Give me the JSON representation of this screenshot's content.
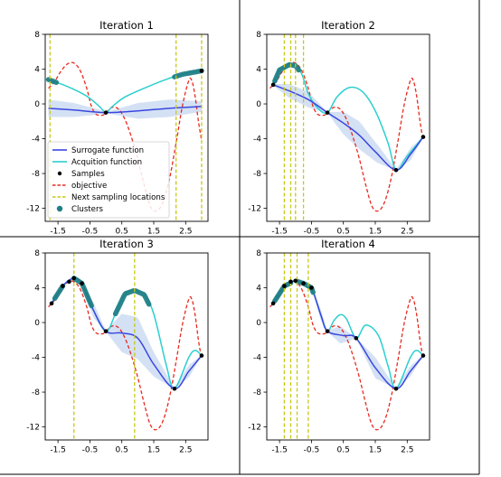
{
  "chart_data": {
    "type": "line",
    "layout": "2x2 grid",
    "xlim": [
      -1.9,
      3.2
    ],
    "ylim": [
      -13.5,
      8
    ],
    "xticks": [
      "-1.5",
      "-0.5",
      "0.5",
      "1.5",
      "2.5"
    ],
    "yticks": [
      "8",
      "4",
      "0",
      "-4",
      "-8",
      "-12"
    ],
    "xtick_values": [
      -1.5,
      -0.5,
      0.5,
      1.5,
      2.5
    ],
    "ytick_values": [
      8,
      4,
      0,
      -4,
      -8,
      -12
    ],
    "grid": false,
    "legend_position": "bottom-left",
    "legend": {
      "surrogate": "Surrogate function",
      "acquisition": "Acquition function",
      "samples": "Samples",
      "objective": "objective",
      "next": "Next sampling locations",
      "clusters": "Clusters"
    },
    "colors": {
      "surrogate": "#3a47e0",
      "acquisition": "#2ccfcf",
      "samples": "#000000",
      "objective": "#e8291f",
      "next": "#c8c817",
      "clusters": "#1f7f86",
      "band": "#c5d7f0"
    },
    "objective": {
      "x": [
        -1.8,
        -1.6,
        -1.4,
        -1.2,
        -1.0,
        -0.8,
        -0.6,
        -0.45,
        -0.3,
        -0.1,
        0.0,
        0.2,
        0.4,
        0.6,
        0.8,
        1.0,
        1.2,
        1.4,
        1.6,
        1.8,
        2.0,
        2.2,
        2.4,
        2.6,
        2.7,
        2.8,
        2.9,
        3.0
      ],
      "y": [
        1.8,
        2.6,
        3.8,
        4.6,
        4.7,
        3.8,
        1.8,
        -0.3,
        -1.2,
        -1.3,
        -1.0,
        -0.4,
        -0.6,
        -1.8,
        -3.8,
        -6.3,
        -9.3,
        -11.8,
        -12.3,
        -11.2,
        -8.5,
        -4.5,
        -0.2,
        2.7,
        2.6,
        0.8,
        -2.0,
        -4.2
      ]
    },
    "panels": [
      {
        "title": "Iteration 1",
        "samples": {
          "x": [
            0.0,
            3.0
          ],
          "y": [
            -1.0,
            3.8
          ]
        },
        "surrogate": {
          "x": [
            -1.8,
            -1.0,
            0.0,
            1.0,
            2.0,
            3.0
          ],
          "y": [
            -0.5,
            -0.7,
            -1.0,
            -0.8,
            -0.5,
            -0.3
          ]
        },
        "surrogate_std": {
          "x": [
            -1.8,
            -1.0,
            -0.3,
            0.0,
            0.4,
            1.0,
            2.0,
            3.0
          ],
          "s": [
            1.0,
            0.8,
            0.35,
            0.05,
            0.4,
            0.9,
            1.0,
            0.6
          ]
        },
        "acquisition": {
          "x": [
            -1.8,
            -1.2,
            -0.6,
            -0.2,
            0.0,
            0.2,
            0.6,
            1.2,
            1.8,
            2.4,
            3.0
          ],
          "y": [
            2.8,
            2.0,
            0.9,
            -0.3,
            -1.0,
            -0.3,
            0.8,
            1.8,
            2.7,
            3.4,
            3.8
          ]
        },
        "clusters": [
          {
            "x": [
              -1.8,
              -1.55
            ],
            "y": [
              2.8,
              2.5
            ]
          },
          {
            "x": [
              2.15,
              3.0
            ],
            "y": [
              3.1,
              3.85
            ]
          }
        ],
        "next_locations": [
          -1.75,
          2.2,
          3.0
        ],
        "show_legend": true
      },
      {
        "title": "Iteration 2",
        "samples": {
          "x": [
            -1.7,
            0.0,
            2.15,
            3.0
          ],
          "y": [
            2.2,
            -1.0,
            -7.6,
            -3.8
          ]
        },
        "surrogate": {
          "x": [
            -1.7,
            -1.2,
            -0.6,
            0.0,
            0.5,
            1.0,
            1.5,
            2.15,
            2.6,
            3.0
          ],
          "y": [
            2.2,
            1.5,
            0.5,
            -1.0,
            -2.2,
            -3.6,
            -5.5,
            -7.6,
            -5.8,
            -3.8
          ]
        },
        "surrogate_std": {
          "x": [
            -1.7,
            -1.2,
            -0.6,
            0.0,
            0.5,
            1.0,
            1.6,
            2.15,
            2.6,
            3.0
          ],
          "s": [
            0.1,
            0.8,
            0.9,
            0.05,
            1.3,
            1.6,
            1.0,
            0.05,
            0.7,
            0.05
          ]
        },
        "acquisition": {
          "x": [
            -1.7,
            -1.5,
            -1.2,
            -1.0,
            -0.8,
            -0.6,
            -0.3,
            0.0,
            0.3,
            0.7,
            1.1,
            1.5,
            1.9,
            2.15,
            2.5,
            3.0
          ],
          "y": [
            2.2,
            3.9,
            4.5,
            4.4,
            3.4,
            1.2,
            -0.5,
            -1.0,
            0.8,
            1.9,
            1.4,
            -0.8,
            -4.5,
            -7.6,
            -6.0,
            -3.8
          ]
        },
        "clusters": [
          {
            "x": [
              -1.65,
              -0.9
            ],
            "y": [
              3.0,
              4.2
            ]
          }
        ],
        "next_locations": [
          -1.35,
          -1.15,
          -1.0,
          -0.75
        ],
        "show_legend": false
      },
      {
        "title": "Iteration 3",
        "samples": {
          "x": [
            -1.7,
            -1.35,
            -1.15,
            -1.0,
            -0.75,
            0.0,
            2.15,
            3.0
          ],
          "y": [
            2.2,
            4.2,
            4.7,
            5.1,
            4.5,
            -1.0,
            -7.6,
            -3.8
          ]
        },
        "surrogate": {
          "x": [
            -1.7,
            -1.35,
            -1.0,
            -0.75,
            -0.4,
            0.0,
            0.5,
            1.0,
            1.5,
            2.15,
            2.6,
            3.0
          ],
          "y": [
            2.2,
            4.2,
            5.1,
            4.5,
            1.5,
            -1.0,
            -1.2,
            -1.8,
            -4.8,
            -7.6,
            -5.6,
            -3.8
          ]
        },
        "surrogate_std": {
          "x": [
            -1.7,
            -1.0,
            -0.75,
            -0.4,
            0.0,
            0.5,
            1.0,
            1.6,
            2.15,
            2.6,
            3.0
          ],
          "s": [
            0.05,
            0.1,
            0.1,
            0.9,
            0.05,
            2.2,
            2.4,
            1.2,
            0.05,
            0.7,
            0.05
          ]
        },
        "acquisition": {
          "x": [
            -1.7,
            -1.35,
            -1.0,
            -0.75,
            -0.4,
            0.0,
            0.3,
            0.6,
            0.9,
            1.2,
            1.5,
            1.9,
            2.15,
            2.6,
            2.8,
            3.0
          ],
          "y": [
            2.2,
            4.2,
            5.1,
            4.5,
            1.5,
            -1.0,
            1.0,
            3.3,
            3.7,
            3.2,
            1.0,
            -5.0,
            -7.6,
            -4.0,
            -3.2,
            -3.8
          ]
        },
        "clusters": [
          {
            "x": [
              -1.6,
              -1.35
            ],
            "y": [
              2.8,
              4.0
            ]
          },
          {
            "x": [
              -1.0,
              -0.45
            ],
            "y": [
              4.8,
              3.8
            ]
          },
          {
            "x": [
              0.3,
              1.35
            ],
            "y": [
              1.2,
              2.2
            ]
          }
        ],
        "next_locations": [
          -1.0,
          0.9
        ],
        "show_legend": false
      },
      {
        "title": "Iteration 4",
        "samples": {
          "x": [
            -1.7,
            -1.35,
            -1.15,
            -1.0,
            -0.75,
            -0.5,
            0.0,
            0.9,
            2.15,
            3.0
          ],
          "y": [
            2.2,
            4.2,
            4.7,
            4.8,
            4.5,
            4.0,
            -1.0,
            -1.8,
            -7.6,
            -3.8
          ]
        },
        "surrogate": {
          "x": [
            -1.7,
            -1.35,
            -1.0,
            -0.75,
            -0.5,
            -0.2,
            0.0,
            0.5,
            0.9,
            1.5,
            2.15,
            2.6,
            3.0
          ],
          "y": [
            2.2,
            4.2,
            4.8,
            4.5,
            4.0,
            0.8,
            -1.0,
            -1.5,
            -1.8,
            -5.2,
            -7.6,
            -5.6,
            -3.8
          ]
        },
        "surrogate_std": {
          "x": [
            -1.7,
            -1.0,
            -0.5,
            -0.2,
            0.0,
            0.4,
            0.9,
            1.5,
            2.15,
            2.6,
            3.0
          ],
          "s": [
            0.05,
            0.1,
            0.1,
            0.6,
            0.05,
            1.0,
            0.05,
            1.2,
            0.05,
            0.6,
            0.05
          ]
        },
        "acquisition": {
          "x": [
            -1.7,
            -1.35,
            -1.0,
            -0.75,
            -0.5,
            -0.2,
            0.0,
            0.2,
            0.4,
            0.6,
            0.9,
            1.2,
            1.6,
            1.9,
            2.15,
            2.6,
            2.8,
            3.0
          ],
          "y": [
            2.2,
            4.2,
            4.8,
            4.5,
            4.0,
            0.8,
            -1.0,
            0.2,
            0.9,
            0.4,
            -1.8,
            -0.3,
            -1.5,
            -5.0,
            -7.6,
            -4.0,
            -3.2,
            -3.8
          ]
        },
        "clusters": [
          {
            "x": [
              -1.65,
              -1.15
            ],
            "y": [
              2.8,
              4.6
            ]
          },
          {
            "x": [
              -0.95,
              -0.45
            ],
            "y": [
              4.7,
              3.9
            ]
          }
        ],
        "next_locations": [
          -1.35,
          -1.15,
          -0.95,
          -0.6
        ],
        "show_legend": false
      }
    ]
  }
}
